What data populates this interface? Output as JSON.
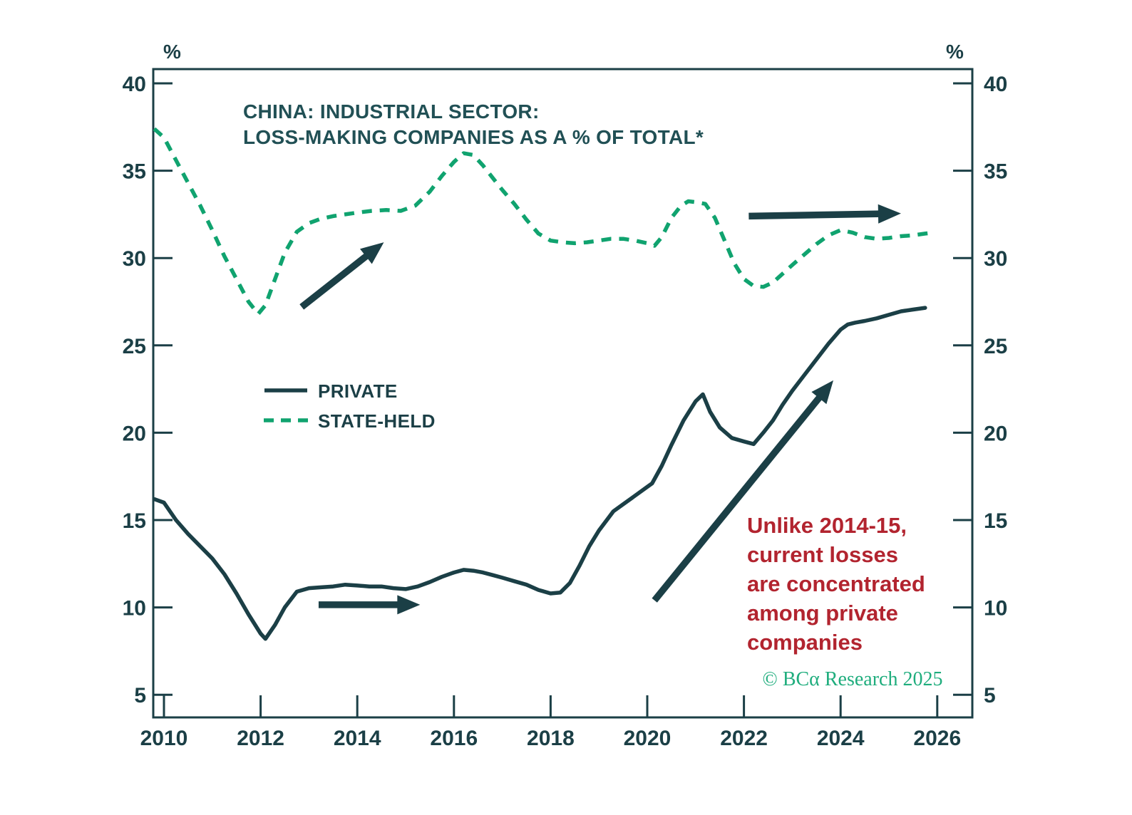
{
  "colors": {
    "ink": "#1B3F46",
    "title_ink": "#215055",
    "state_green": "#10A36F",
    "annotation_red": "#B2242F",
    "credit_green": "#1FAD7D",
    "background": "#FFFFFF"
  },
  "chart_data": {
    "type": "line",
    "title_lines": [
      "CHINA: INDUSTRIAL SECTOR:",
      "LOSS-MAKING COMPANIES AS A % OF TOTAL*"
    ],
    "axis_unit_left": "%",
    "axis_unit_right": "%",
    "xlabel": "",
    "ylabel": "",
    "x_ticks": [
      2010,
      2012,
      2014,
      2016,
      2018,
      2020,
      2022,
      2024,
      2026
    ],
    "y_ticks": [
      5,
      10,
      15,
      20,
      25,
      30,
      35,
      40
    ],
    "xlim": [
      2009.78,
      2026.73
    ],
    "ylim": [
      3.7,
      40.85
    ],
    "grid": false,
    "legend_position": "upper-left-inside",
    "legend": [
      {
        "label": "PRIVATE",
        "style": "solid",
        "color": "#1B3F46"
      },
      {
        "label": "STATE-HELD",
        "style": "dashed",
        "color": "#10A36F"
      }
    ],
    "series": [
      {
        "name": "PRIVATE",
        "style": "solid",
        "color": "#1B3F46",
        "points": [
          [
            2009.8,
            16.2
          ],
          [
            2010,
            16
          ],
          [
            2010.25,
            15
          ],
          [
            2010.5,
            14.2
          ],
          [
            2010.75,
            13.5
          ],
          [
            2011,
            12.8
          ],
          [
            2011.25,
            11.9
          ],
          [
            2011.5,
            10.8
          ],
          [
            2011.75,
            9.6
          ],
          [
            2012,
            8.5
          ],
          [
            2012.1,
            8.2
          ],
          [
            2012.3,
            9
          ],
          [
            2012.5,
            10
          ],
          [
            2012.75,
            10.9
          ],
          [
            2013,
            11.1
          ],
          [
            2013.25,
            11.15
          ],
          [
            2013.5,
            11.2
          ],
          [
            2013.75,
            11.3
          ],
          [
            2014,
            11.25
          ],
          [
            2014.25,
            11.2
          ],
          [
            2014.5,
            11.2
          ],
          [
            2014.75,
            11.1
          ],
          [
            2015,
            11.05
          ],
          [
            2015.25,
            11.2
          ],
          [
            2015.5,
            11.45
          ],
          [
            2015.75,
            11.75
          ],
          [
            2016,
            12
          ],
          [
            2016.2,
            12.15
          ],
          [
            2016.4,
            12.1
          ],
          [
            2016.6,
            12
          ],
          [
            2016.8,
            11.85
          ],
          [
            2017,
            11.7
          ],
          [
            2017.25,
            11.5
          ],
          [
            2017.5,
            11.3
          ],
          [
            2017.75,
            11
          ],
          [
            2018,
            10.8
          ],
          [
            2018.2,
            10.85
          ],
          [
            2018.4,
            11.4
          ],
          [
            2018.6,
            12.4
          ],
          [
            2018.8,
            13.5
          ],
          [
            2019,
            14.4
          ],
          [
            2019.3,
            15.5
          ],
          [
            2019.5,
            15.9
          ],
          [
            2019.75,
            16.4
          ],
          [
            2020,
            16.9
          ],
          [
            2020.1,
            17.1
          ],
          [
            2020.3,
            18.1
          ],
          [
            2020.5,
            19.3
          ],
          [
            2020.75,
            20.7
          ],
          [
            2021,
            21.8
          ],
          [
            2021.15,
            22.2
          ],
          [
            2021.3,
            21.2
          ],
          [
            2021.5,
            20.3
          ],
          [
            2021.75,
            19.7
          ],
          [
            2022,
            19.5
          ],
          [
            2022.2,
            19.35
          ],
          [
            2022.4,
            20
          ],
          [
            2022.6,
            20.7
          ],
          [
            2022.8,
            21.6
          ],
          [
            2023,
            22.4
          ],
          [
            2023.25,
            23.3
          ],
          [
            2023.5,
            24.2
          ],
          [
            2023.75,
            25.1
          ],
          [
            2024,
            25.9
          ],
          [
            2024.15,
            26.2
          ],
          [
            2024.3,
            26.3
          ],
          [
            2024.5,
            26.4
          ],
          [
            2024.75,
            26.55
          ],
          [
            2025,
            26.75
          ],
          [
            2025.25,
            26.95
          ],
          [
            2025.5,
            27.05
          ],
          [
            2025.75,
            27.15
          ]
        ]
      },
      {
        "name": "STATE-HELD",
        "style": "dashed",
        "color": "#10A36F",
        "points": [
          [
            2009.8,
            37.4
          ],
          [
            2010,
            36.9
          ],
          [
            2010.25,
            35.6
          ],
          [
            2010.5,
            34.3
          ],
          [
            2010.75,
            33
          ],
          [
            2011,
            31.6
          ],
          [
            2011.25,
            30.1
          ],
          [
            2011.5,
            28.8
          ],
          [
            2011.75,
            27.5
          ],
          [
            2011.95,
            26.8
          ],
          [
            2012.1,
            27.3
          ],
          [
            2012.3,
            28.8
          ],
          [
            2012.5,
            30.3
          ],
          [
            2012.75,
            31.5
          ],
          [
            2013,
            32
          ],
          [
            2013.25,
            32.25
          ],
          [
            2013.5,
            32.4
          ],
          [
            2013.75,
            32.5
          ],
          [
            2014,
            32.6
          ],
          [
            2014.3,
            32.7
          ],
          [
            2014.6,
            32.75
          ],
          [
            2014.9,
            32.7
          ],
          [
            2015.2,
            33
          ],
          [
            2015.5,
            33.8
          ],
          [
            2015.75,
            34.7
          ],
          [
            2016,
            35.5
          ],
          [
            2016.2,
            36
          ],
          [
            2016.4,
            35.9
          ],
          [
            2016.6,
            35.3
          ],
          [
            2016.8,
            34.6
          ],
          [
            2017,
            33.9
          ],
          [
            2017.25,
            33.1
          ],
          [
            2017.5,
            32.2
          ],
          [
            2017.75,
            31.4
          ],
          [
            2018,
            31
          ],
          [
            2018.25,
            30.9
          ],
          [
            2018.5,
            30.85
          ],
          [
            2018.75,
            30.9
          ],
          [
            2019,
            31
          ],
          [
            2019.25,
            31.1
          ],
          [
            2019.5,
            31.1
          ],
          [
            2019.75,
            31
          ],
          [
            2020,
            30.85
          ],
          [
            2020.15,
            30.7
          ],
          [
            2020.3,
            31.2
          ],
          [
            2020.5,
            32.3
          ],
          [
            2020.7,
            33
          ],
          [
            2020.85,
            33.25
          ],
          [
            2021,
            33.2
          ],
          [
            2021.2,
            33.1
          ],
          [
            2021.4,
            32.3
          ],
          [
            2021.6,
            31
          ],
          [
            2021.8,
            29.7
          ],
          [
            2022,
            28.8
          ],
          [
            2022.2,
            28.4
          ],
          [
            2022.4,
            28.35
          ],
          [
            2022.6,
            28.6
          ],
          [
            2022.8,
            29.1
          ],
          [
            2023,
            29.6
          ],
          [
            2023.25,
            30.2
          ],
          [
            2023.5,
            30.8
          ],
          [
            2023.75,
            31.3
          ],
          [
            2024,
            31.6
          ],
          [
            2024.25,
            31.45
          ],
          [
            2024.5,
            31.2
          ],
          [
            2024.75,
            31.1
          ],
          [
            2025,
            31.15
          ],
          [
            2025.25,
            31.25
          ],
          [
            2025.5,
            31.3
          ],
          [
            2025.75,
            31.4
          ],
          [
            2025.9,
            31.45
          ]
        ]
      }
    ],
    "arrows": [
      {
        "name": "state-held-rise-arrow",
        "from": [
          2012.85,
          27.2
        ],
        "to": [
          2014.55,
          30.9
        ]
      },
      {
        "name": "private-flat-arrow",
        "from": [
          2013.2,
          10.15
        ],
        "to": [
          2015.3,
          10.15
        ]
      },
      {
        "name": "private-surge-arrow",
        "from": [
          2020.15,
          10.4
        ],
        "to": [
          2023.85,
          23.0
        ]
      },
      {
        "name": "state-held-flat-arrow",
        "from": [
          2022.1,
          32.4
        ],
        "to": [
          2025.25,
          32.55
        ]
      }
    ],
    "annotation": {
      "lines": [
        "Unlike 2014-15,",
        "current losses",
        "are concentrated",
        "among private",
        "companies"
      ],
      "color": "#B2242F"
    },
    "credit": "© BCα Research 2025"
  }
}
